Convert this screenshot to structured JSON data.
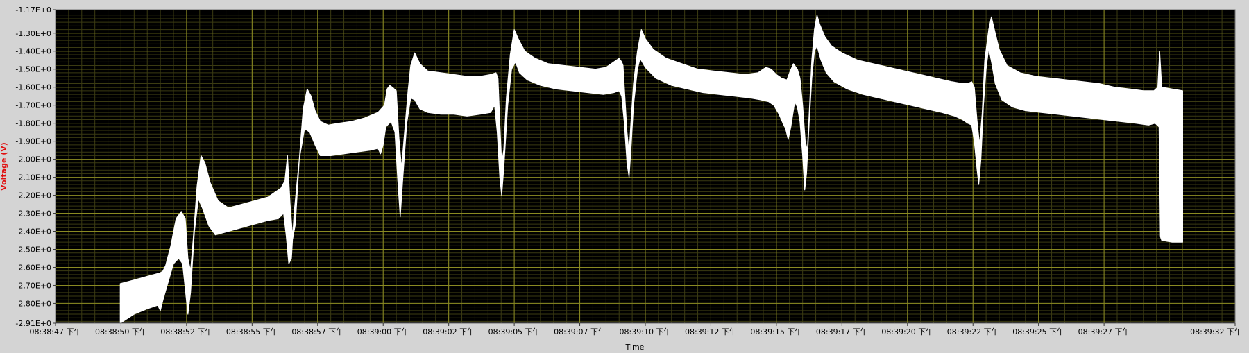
{
  "chart_data": {
    "type": "line",
    "title": "",
    "xlabel": "Time",
    "ylabel": "Voltage (V)",
    "x_tick_labels": [
      "08:38:47 下午",
      "08:38:50 下午",
      "08:38:52 下午",
      "08:38:55 下午",
      "08:38:57 下午",
      "08:39:00 下午",
      "08:39:02 下午",
      "08:39:05 下午",
      "08:39:07 下午",
      "08:39:10 下午",
      "08:39:12 下午",
      "08:39:15 下午",
      "08:39:17 下午",
      "08:39:20 下午",
      "08:39:22 下午",
      "08:39:25 下午",
      "08:39:27 下午",
      "08:39:32 下午"
    ],
    "y_tick_labels": [
      "-1.17E+0",
      "-1.30E+0",
      "-1.40E+0",
      "-1.50E+0",
      "-1.60E+0",
      "-1.70E+0",
      "-1.80E+0",
      "-1.90E+0",
      "-2.00E+0",
      "-2.10E+0",
      "-2.20E+0",
      "-2.30E+0",
      "-2.40E+0",
      "-2.50E+0",
      "-2.60E+0",
      "-2.70E+0",
      "-2.80E+0",
      "-2.91E+0"
    ],
    "ylim": [
      -2.91,
      -1.17
    ],
    "xlim_seconds": [
      0,
      45
    ],
    "grid": true,
    "colors": {
      "background": "#000000",
      "major_grid": "#8a8a22",
      "minor_grid": "#3b3b12",
      "trace": "#ffffff",
      "frame": "#d4d4d4",
      "ylabel": "#e01010"
    },
    "series": [
      {
        "points_top": [
          [
            2.47,
            -2.69
          ],
          [
            3.0,
            -2.67
          ],
          [
            3.5,
            -2.65
          ],
          [
            4.0,
            -2.63
          ],
          [
            4.1,
            -2.62
          ],
          [
            4.2,
            -2.59
          ],
          [
            4.4,
            -2.48
          ],
          [
            4.6,
            -2.33
          ],
          [
            4.8,
            -2.29
          ],
          [
            4.95,
            -2.33
          ],
          [
            5.05,
            -2.55
          ],
          [
            5.15,
            -2.62
          ],
          [
            5.25,
            -2.45
          ],
          [
            5.4,
            -2.15
          ],
          [
            5.55,
            -1.98
          ],
          [
            5.7,
            -2.02
          ],
          [
            5.9,
            -2.13
          ],
          [
            6.2,
            -2.23
          ],
          [
            6.6,
            -2.27
          ],
          [
            7.1,
            -2.25
          ],
          [
            7.6,
            -2.23
          ],
          [
            8.1,
            -2.21
          ],
          [
            8.6,
            -2.16
          ],
          [
            8.75,
            -2.12
          ],
          [
            8.85,
            -1.98
          ],
          [
            8.95,
            -2.25
          ],
          [
            9.05,
            -2.44
          ],
          [
            9.15,
            -2.36
          ],
          [
            9.3,
            -2.0
          ],
          [
            9.45,
            -1.72
          ],
          [
            9.6,
            -1.61
          ],
          [
            9.75,
            -1.65
          ],
          [
            9.9,
            -1.73
          ],
          [
            10.1,
            -1.79
          ],
          [
            10.4,
            -1.81
          ],
          [
            10.8,
            -1.8
          ],
          [
            11.3,
            -1.79
          ],
          [
            11.8,
            -1.77
          ],
          [
            12.3,
            -1.74
          ],
          [
            12.55,
            -1.7
          ],
          [
            12.65,
            -1.61
          ],
          [
            12.75,
            -1.59
          ],
          [
            12.85,
            -1.6
          ],
          [
            13.0,
            -1.62
          ],
          [
            13.1,
            -1.88
          ],
          [
            13.2,
            -2.05
          ],
          [
            13.3,
            -1.88
          ],
          [
            13.45,
            -1.62
          ],
          [
            13.55,
            -1.48
          ],
          [
            13.7,
            -1.41
          ],
          [
            13.9,
            -1.47
          ],
          [
            14.2,
            -1.51
          ],
          [
            14.7,
            -1.52
          ],
          [
            15.2,
            -1.53
          ],
          [
            15.7,
            -1.54
          ],
          [
            16.2,
            -1.54
          ],
          [
            16.6,
            -1.53
          ],
          [
            16.8,
            -1.52
          ],
          [
            16.88,
            -1.55
          ],
          [
            16.95,
            -1.8
          ],
          [
            17.02,
            -2.02
          ],
          [
            17.1,
            -1.95
          ],
          [
            17.2,
            -1.66
          ],
          [
            17.35,
            -1.42
          ],
          [
            17.5,
            -1.28
          ],
          [
            17.65,
            -1.33
          ],
          [
            17.9,
            -1.4
          ],
          [
            18.3,
            -1.44
          ],
          [
            18.8,
            -1.47
          ],
          [
            19.4,
            -1.48
          ],
          [
            20.0,
            -1.49
          ],
          [
            20.6,
            -1.5
          ],
          [
            21.0,
            -1.49
          ],
          [
            21.3,
            -1.46
          ],
          [
            21.5,
            -1.44
          ],
          [
            21.6,
            -1.46
          ],
          [
            21.65,
            -1.48
          ],
          [
            21.72,
            -1.65
          ],
          [
            21.8,
            -1.85
          ],
          [
            21.88,
            -1.97
          ],
          [
            21.95,
            -1.8
          ],
          [
            22.05,
            -1.58
          ],
          [
            22.2,
            -1.4
          ],
          [
            22.35,
            -1.28
          ],
          [
            22.5,
            -1.33
          ],
          [
            22.8,
            -1.39
          ],
          [
            23.3,
            -1.44
          ],
          [
            23.9,
            -1.47
          ],
          [
            24.5,
            -1.5
          ],
          [
            25.1,
            -1.51
          ],
          [
            25.7,
            -1.52
          ],
          [
            26.3,
            -1.53
          ],
          [
            26.8,
            -1.52
          ],
          [
            27.1,
            -1.49
          ],
          [
            27.3,
            -1.5
          ],
          [
            27.5,
            -1.53
          ],
          [
            27.7,
            -1.55
          ],
          [
            27.9,
            -1.56
          ],
          [
            28.0,
            -1.52
          ],
          [
            28.15,
            -1.47
          ],
          [
            28.3,
            -1.5
          ],
          [
            28.4,
            -1.55
          ],
          [
            28.5,
            -1.7
          ],
          [
            28.6,
            -1.9
          ],
          [
            28.68,
            -1.95
          ],
          [
            28.75,
            -1.75
          ],
          [
            28.85,
            -1.45
          ],
          [
            28.95,
            -1.28
          ],
          [
            29.05,
            -1.2
          ],
          [
            29.15,
            -1.25
          ],
          [
            29.35,
            -1.32
          ],
          [
            29.6,
            -1.37
          ],
          [
            30.0,
            -1.41
          ],
          [
            30.6,
            -1.45
          ],
          [
            31.2,
            -1.47
          ],
          [
            31.8,
            -1.49
          ],
          [
            32.4,
            -1.51
          ],
          [
            33.0,
            -1.53
          ],
          [
            33.6,
            -1.55
          ],
          [
            34.2,
            -1.57
          ],
          [
            34.6,
            -1.58
          ],
          [
            34.8,
            -1.58
          ],
          [
            34.95,
            -1.57
          ],
          [
            35.05,
            -1.6
          ],
          [
            35.15,
            -1.78
          ],
          [
            35.25,
            -1.92
          ],
          [
            35.35,
            -1.75
          ],
          [
            35.45,
            -1.45
          ],
          [
            35.6,
            -1.28
          ],
          [
            35.7,
            -1.21
          ],
          [
            35.8,
            -1.27
          ],
          [
            36.0,
            -1.39
          ],
          [
            36.3,
            -1.48
          ],
          [
            36.8,
            -1.52
          ],
          [
            37.4,
            -1.54
          ],
          [
            38.0,
            -1.55
          ],
          [
            38.6,
            -1.56
          ],
          [
            39.2,
            -1.57
          ],
          [
            39.8,
            -1.58
          ],
          [
            40.4,
            -1.6
          ],
          [
            41.0,
            -1.61
          ],
          [
            41.5,
            -1.62
          ],
          [
            41.9,
            -1.62
          ],
          [
            42.05,
            -1.6
          ],
          [
            42.12,
            -1.4
          ],
          [
            42.2,
            -1.6
          ],
          [
            42.6,
            -1.61
          ],
          [
            43.0,
            -1.62
          ]
        ],
        "points_bottom": [
          [
            2.47,
            -2.91
          ],
          [
            3.0,
            -2.86
          ],
          [
            3.5,
            -2.83
          ],
          [
            3.9,
            -2.81
          ],
          [
            4.0,
            -2.84
          ],
          [
            4.1,
            -2.78
          ],
          [
            4.3,
            -2.68
          ],
          [
            4.5,
            -2.58
          ],
          [
            4.7,
            -2.55
          ],
          [
            4.85,
            -2.58
          ],
          [
            4.95,
            -2.72
          ],
          [
            5.05,
            -2.86
          ],
          [
            5.15,
            -2.74
          ],
          [
            5.3,
            -2.4
          ],
          [
            5.45,
            -2.22
          ],
          [
            5.6,
            -2.27
          ],
          [
            5.85,
            -2.37
          ],
          [
            6.1,
            -2.42
          ],
          [
            6.6,
            -2.4
          ],
          [
            7.1,
            -2.38
          ],
          [
            7.6,
            -2.36
          ],
          [
            8.1,
            -2.34
          ],
          [
            8.5,
            -2.33
          ],
          [
            8.7,
            -2.3
          ],
          [
            8.8,
            -2.42
          ],
          [
            8.9,
            -2.58
          ],
          [
            9.0,
            -2.55
          ],
          [
            9.1,
            -2.3
          ],
          [
            9.3,
            -2.0
          ],
          [
            9.5,
            -1.83
          ],
          [
            9.7,
            -1.85
          ],
          [
            9.9,
            -1.92
          ],
          [
            10.1,
            -1.98
          ],
          [
            10.5,
            -1.98
          ],
          [
            11.0,
            -1.97
          ],
          [
            11.5,
            -1.96
          ],
          [
            12.0,
            -1.95
          ],
          [
            12.3,
            -1.94
          ],
          [
            12.4,
            -1.97
          ],
          [
            12.5,
            -1.92
          ],
          [
            12.6,
            -1.82
          ],
          [
            12.8,
            -1.79
          ],
          [
            12.95,
            -1.85
          ],
          [
            13.05,
            -2.1
          ],
          [
            13.15,
            -2.32
          ],
          [
            13.25,
            -2.1
          ],
          [
            13.4,
            -1.8
          ],
          [
            13.55,
            -1.66
          ],
          [
            13.7,
            -1.67
          ],
          [
            13.9,
            -1.72
          ],
          [
            14.2,
            -1.74
          ],
          [
            14.7,
            -1.75
          ],
          [
            15.2,
            -1.75
          ],
          [
            15.7,
            -1.76
          ],
          [
            16.2,
            -1.75
          ],
          [
            16.6,
            -1.74
          ],
          [
            16.75,
            -1.7
          ],
          [
            16.85,
            -1.85
          ],
          [
            16.95,
            -2.1
          ],
          [
            17.02,
            -2.2
          ],
          [
            17.1,
            -2.05
          ],
          [
            17.25,
            -1.7
          ],
          [
            17.4,
            -1.5
          ],
          [
            17.55,
            -1.46
          ],
          [
            17.7,
            -1.52
          ],
          [
            18.0,
            -1.56
          ],
          [
            18.5,
            -1.59
          ],
          [
            19.1,
            -1.61
          ],
          [
            19.7,
            -1.62
          ],
          [
            20.3,
            -1.63
          ],
          [
            20.9,
            -1.64
          ],
          [
            21.3,
            -1.63
          ],
          [
            21.5,
            -1.62
          ],
          [
            21.6,
            -1.65
          ],
          [
            21.7,
            -1.8
          ],
          [
            21.8,
            -2.02
          ],
          [
            21.88,
            -2.1
          ],
          [
            21.95,
            -1.95
          ],
          [
            22.05,
            -1.7
          ],
          [
            22.2,
            -1.5
          ],
          [
            22.3,
            -1.44
          ],
          [
            22.5,
            -1.49
          ],
          [
            22.9,
            -1.55
          ],
          [
            23.5,
            -1.59
          ],
          [
            24.1,
            -1.61
          ],
          [
            24.7,
            -1.63
          ],
          [
            25.3,
            -1.64
          ],
          [
            25.9,
            -1.65
          ],
          [
            26.5,
            -1.66
          ],
          [
            26.9,
            -1.67
          ],
          [
            27.2,
            -1.68
          ],
          [
            27.4,
            -1.7
          ],
          [
            27.6,
            -1.75
          ],
          [
            27.75,
            -1.8
          ],
          [
            27.85,
            -1.83
          ],
          [
            27.95,
            -1.89
          ],
          [
            28.05,
            -1.82
          ],
          [
            28.2,
            -1.68
          ],
          [
            28.3,
            -1.71
          ],
          [
            28.4,
            -1.79
          ],
          [
            28.5,
            -1.98
          ],
          [
            28.58,
            -2.17
          ],
          [
            28.65,
            -2.08
          ],
          [
            28.75,
            -1.8
          ],
          [
            28.85,
            -1.55
          ],
          [
            28.95,
            -1.4
          ],
          [
            29.05,
            -1.37
          ],
          [
            29.2,
            -1.45
          ],
          [
            29.4,
            -1.52
          ],
          [
            29.7,
            -1.57
          ],
          [
            30.2,
            -1.61
          ],
          [
            30.8,
            -1.64
          ],
          [
            31.4,
            -1.66
          ],
          [
            32.0,
            -1.68
          ],
          [
            32.6,
            -1.7
          ],
          [
            33.2,
            -1.72
          ],
          [
            33.8,
            -1.74
          ],
          [
            34.3,
            -1.76
          ],
          [
            34.6,
            -1.78
          ],
          [
            34.8,
            -1.8
          ],
          [
            34.95,
            -1.81
          ],
          [
            35.05,
            -1.9
          ],
          [
            35.15,
            -2.05
          ],
          [
            35.22,
            -2.14
          ],
          [
            35.3,
            -2.0
          ],
          [
            35.4,
            -1.7
          ],
          [
            35.5,
            -1.5
          ],
          [
            35.6,
            -1.38
          ],
          [
            35.72,
            -1.47
          ],
          [
            35.85,
            -1.58
          ],
          [
            36.1,
            -1.67
          ],
          [
            36.5,
            -1.71
          ],
          [
            37.0,
            -1.73
          ],
          [
            37.6,
            -1.74
          ],
          [
            38.2,
            -1.75
          ],
          [
            38.8,
            -1.76
          ],
          [
            39.4,
            -1.77
          ],
          [
            40.0,
            -1.78
          ],
          [
            40.6,
            -1.79
          ],
          [
            41.2,
            -1.8
          ],
          [
            41.7,
            -1.81
          ],
          [
            41.95,
            -1.8
          ],
          [
            42.1,
            -1.82
          ],
          [
            42.15,
            -2.43
          ],
          [
            42.2,
            -2.45
          ],
          [
            42.6,
            -2.46
          ],
          [
            43.0,
            -2.46
          ]
        ]
      }
    ]
  }
}
